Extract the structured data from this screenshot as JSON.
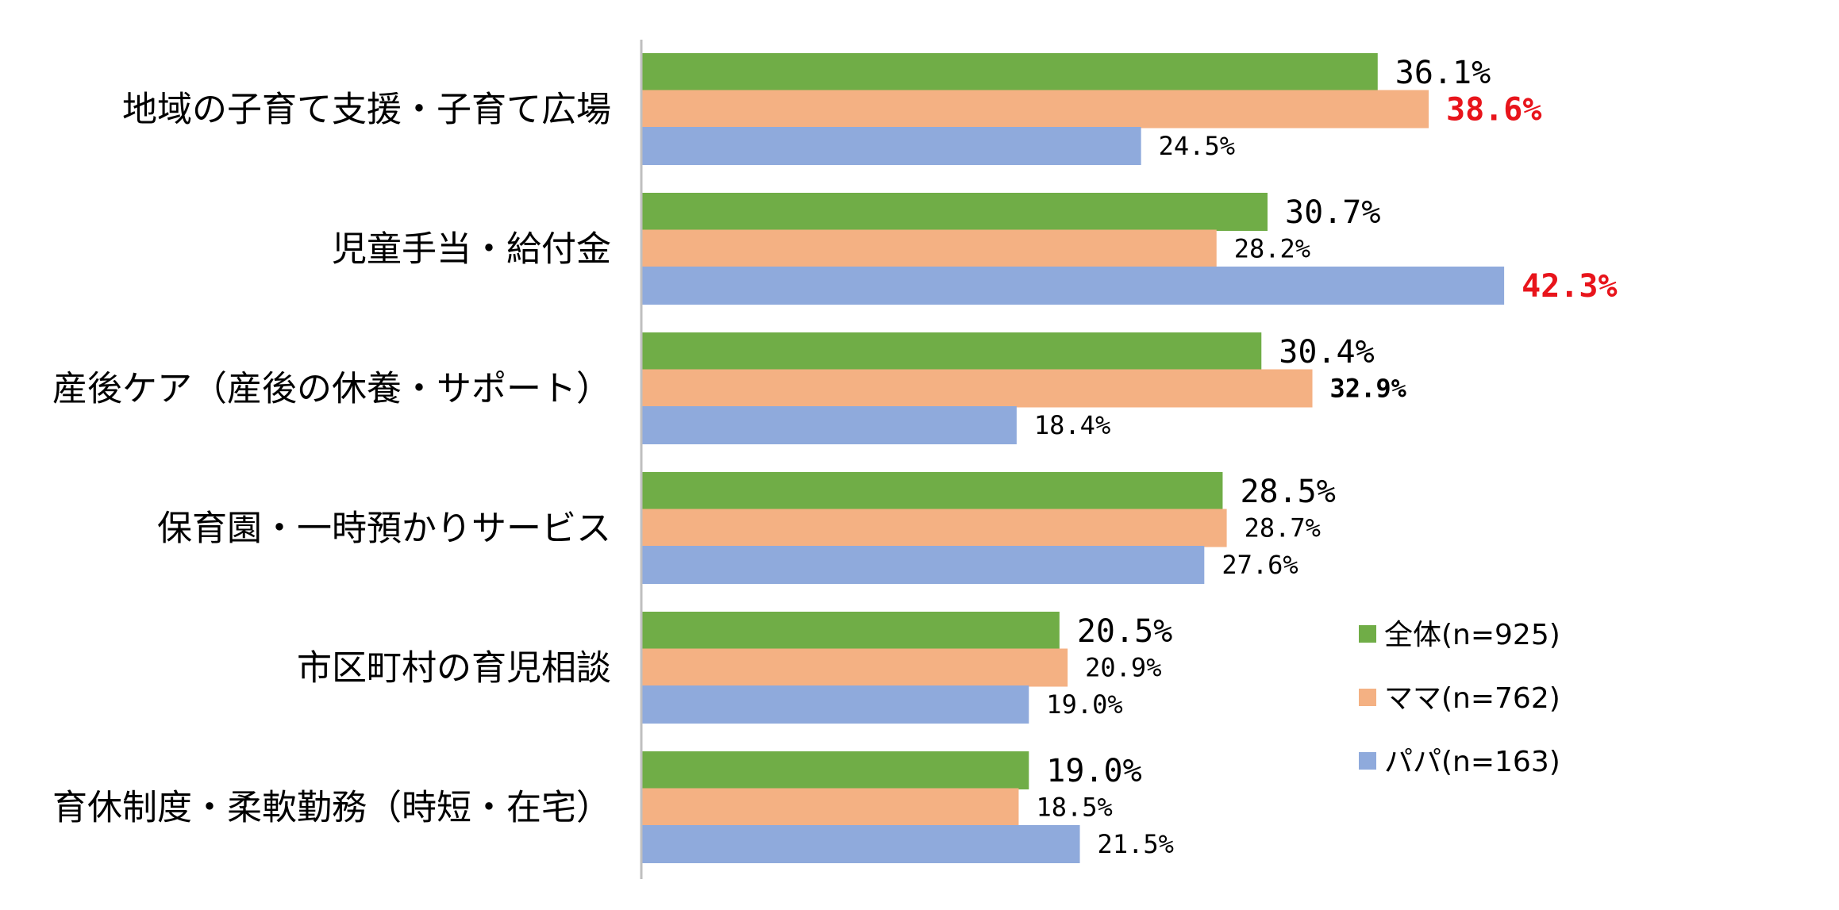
{
  "chart_data": {
    "type": "bar",
    "orientation": "horizontal",
    "categories": [
      "地域の子育て支援・子育て広場",
      "児童手当・給付金",
      "産後ケア（産後の休養・サポート）",
      "保育園・一時預かりサービス",
      "市区町村の育児相談",
      "育休制度・柔軟勤務（時短・在宅）"
    ],
    "series": [
      {
        "name": "全体(n=925)",
        "color": "#70ad47",
        "values": [
          36.1,
          30.7,
          30.4,
          28.5,
          20.5,
          19.0
        ],
        "labels": [
          "36.1%",
          "30.7%",
          "30.4%",
          "28.5%",
          "20.5%",
          "19.0%"
        ],
        "label_styles": [
          "big",
          "big",
          "big",
          "big",
          "big",
          "big"
        ]
      },
      {
        "name": "ママ(n=762)",
        "color": "#f4b183",
        "values": [
          38.6,
          28.2,
          32.9,
          28.7,
          20.9,
          18.5
        ],
        "labels": [
          "38.6%",
          "28.2%",
          "32.9%",
          "28.7%",
          "20.9%",
          "18.5%"
        ],
        "label_styles": [
          "red",
          "small",
          "bold",
          "small",
          "small",
          "small"
        ]
      },
      {
        "name": "パパ(n=163)",
        "color": "#8faadc",
        "values": [
          24.5,
          42.3,
          18.4,
          27.6,
          19.0,
          21.5
        ],
        "labels": [
          "24.5%",
          "42.3%",
          "18.4%",
          "27.6%",
          "19.0%",
          "21.5%"
        ],
        "label_styles": [
          "small",
          "red",
          "small",
          "small",
          "small",
          "small"
        ]
      }
    ],
    "highlight_color": "#e8141b",
    "axis_color": "#bfbfbf",
    "legend_position": "bottom-right"
  }
}
